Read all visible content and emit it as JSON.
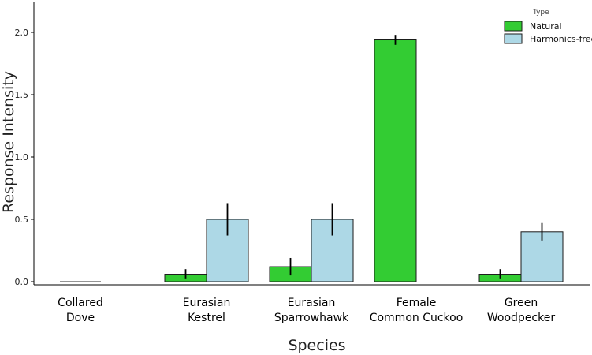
{
  "chart_data": {
    "type": "bar",
    "title": "",
    "xlabel": "Species",
    "ylabel": "Response Intensity",
    "ylim": [
      0,
      2.25
    ],
    "yticks": [
      0.0,
      0.5,
      1.0,
      1.5,
      2.0
    ],
    "ytick_labels": [
      "0.0",
      "0.5",
      "1.0",
      "1.5",
      "2.0"
    ],
    "categories": [
      [
        "Collared",
        "Dove"
      ],
      [
        "Eurasian",
        "Kestrel"
      ],
      [
        "Eurasian",
        "Sparrowhawk"
      ],
      [
        "Female",
        "Common Cuckoo"
      ],
      [
        "Green",
        "Woodpecker"
      ]
    ],
    "legend_title": "Type",
    "legend_position": "top-right",
    "series": [
      {
        "name": "Natural",
        "color": "#33cc33",
        "values": [
          0.0,
          0.06,
          0.12,
          1.94,
          0.06
        ],
        "errors": [
          0.0,
          0.04,
          0.07,
          0.04,
          0.04
        ]
      },
      {
        "name": "Harmonics-free",
        "color": "#add8e6",
        "values": [
          null,
          0.5,
          0.5,
          null,
          0.4
        ],
        "errors": [
          null,
          0.13,
          0.13,
          null,
          0.07
        ]
      }
    ]
  }
}
